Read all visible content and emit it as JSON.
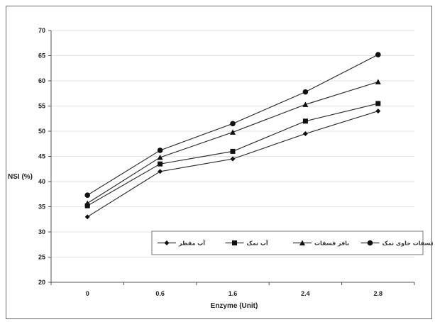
{
  "chart_data": {
    "type": "line",
    "title": "",
    "xlabel": "Enzyme (Unit)",
    "ylabel": "NSI (%)",
    "categories": [
      "0",
      "0.6",
      "1.6",
      "2.4",
      "2.8"
    ],
    "ylim": [
      20,
      70
    ],
    "yticks": [
      20,
      25,
      30,
      35,
      40,
      45,
      50,
      55,
      60,
      65,
      70
    ],
    "grid": true,
    "legend_position": "bottom-right",
    "series": [
      {
        "name": "آب مقطر",
        "marker": "diamond",
        "values": [
          33.0,
          42.0,
          44.5,
          49.5,
          54.0
        ]
      },
      {
        "name": "آب نمک",
        "marker": "square",
        "values": [
          35.2,
          43.5,
          46.0,
          52.0,
          55.5
        ]
      },
      {
        "name": "بافر فسفات",
        "marker": "triangle",
        "values": [
          35.7,
          44.8,
          49.8,
          55.3,
          59.8
        ]
      },
      {
        "name": "بافر فسفات حاوی نمک",
        "marker": "circle",
        "values": [
          37.3,
          46.2,
          51.5,
          57.8,
          65.2
        ]
      }
    ]
  }
}
